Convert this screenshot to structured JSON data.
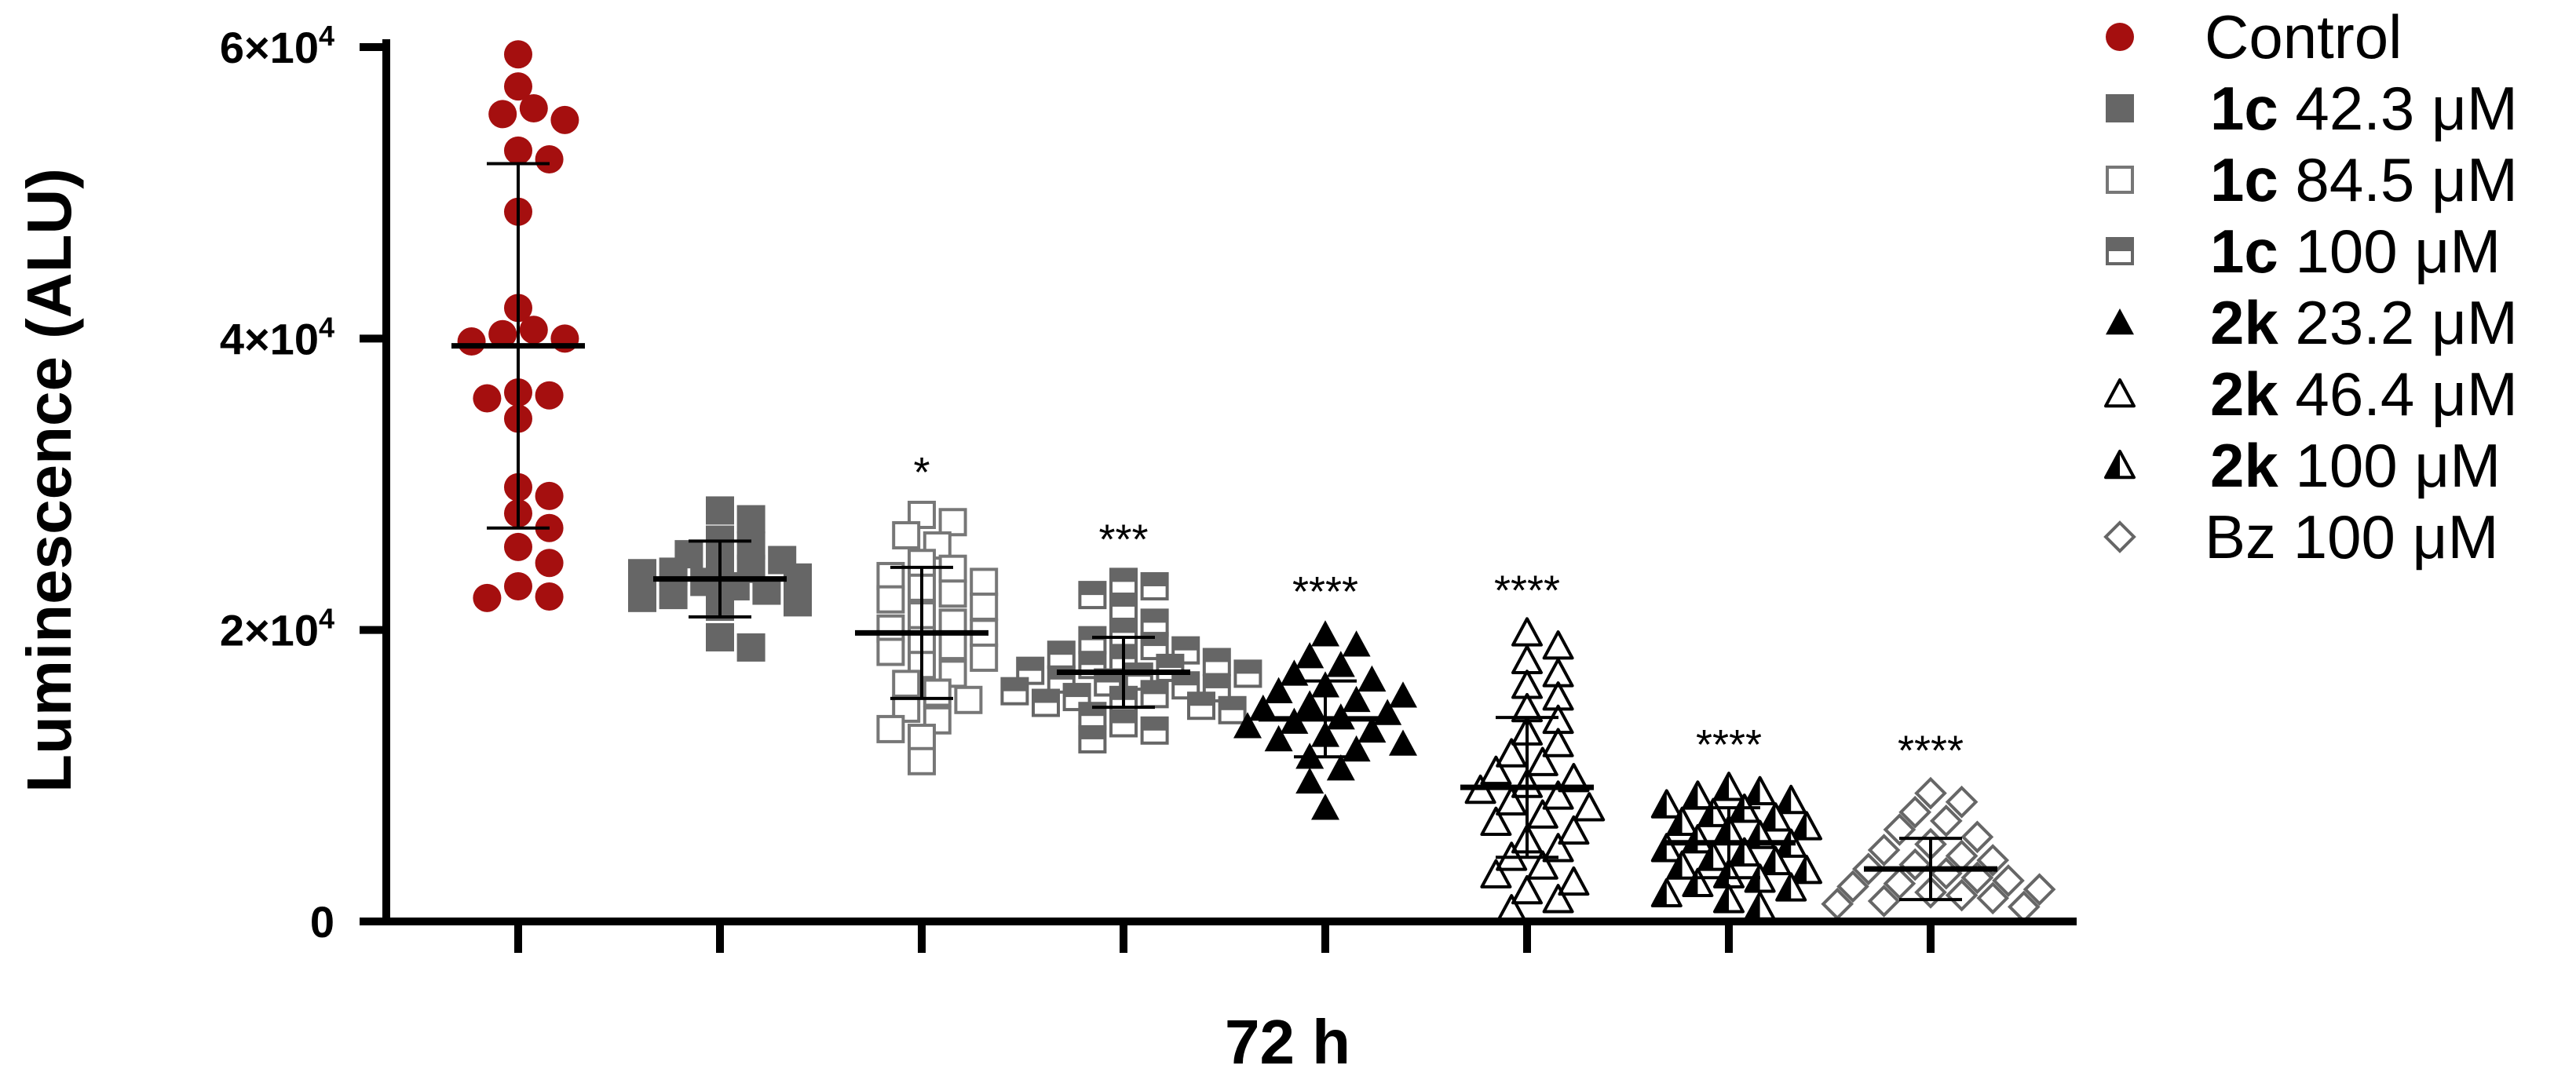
{
  "chart_data": {
    "type": "scatter",
    "title": "",
    "xlabel": "72 h",
    "ylabel": "Luminescence (ALU)",
    "ylim": [
      0,
      60000
    ],
    "yticks": [
      {
        "value": 0,
        "label": "0"
      },
      {
        "value": 20000,
        "base": "2×10",
        "exp": "4"
      },
      {
        "value": 40000,
        "base": "4×10",
        "exp": "4"
      },
      {
        "value": 60000,
        "base": "6×10",
        "exp": "4"
      }
    ],
    "legend_position": "right",
    "series": [
      {
        "bold": "",
        "rest": "Control",
        "marker": "circle",
        "color": "#a50f0f",
        "mean": 39500,
        "sd": 12500,
        "significance": "",
        "values": [
          59500,
          57300,
          55800,
          55400,
          55000,
          52900,
          52300,
          48700,
          42100,
          40600,
          40300,
          40000,
          39800,
          36300,
          36100,
          35900,
          34500,
          29800,
          29200,
          28000,
          27000,
          25700,
          24600,
          23000,
          22300,
          22200
        ]
      },
      {
        "bold": "1c",
        "rest": " 42.3 μM",
        "marker": "square",
        "color": "#666666",
        "mean": 23500,
        "sd": 2600,
        "significance": "",
        "values": [
          28200,
          27600,
          26200,
          25800,
          25200,
          24800,
          24500,
          24200,
          24000,
          23900,
          23600,
          23300,
          23000,
          22700,
          22400,
          22200,
          21900,
          21600,
          19500,
          18800
        ]
      },
      {
        "bold": "1c",
        "rest": " 84.5 μM",
        "marker": "square-open",
        "color": "#777777",
        "mean": 19800,
        "sd": 4500,
        "significance": "*",
        "values": [
          27900,
          27400,
          26500,
          25800,
          24600,
          24200,
          23700,
          23300,
          22900,
          22500,
          22100,
          21600,
          21000,
          20500,
          20100,
          19800,
          19300,
          18900,
          18500,
          18100,
          17600,
          17000,
          16300,
          15700,
          15200,
          14600,
          13800,
          13200,
          12600,
          11000
        ]
      },
      {
        "bold": "1c",
        "rest": " 100 μM",
        "marker": "square-half",
        "color": "#666666",
        "mean": 17100,
        "sd": 2400,
        "significance": "***",
        "values": [
          23300,
          23000,
          22400,
          21600,
          20500,
          19800,
          19300,
          18900,
          18600,
          18300,
          18000,
          17800,
          17600,
          17400,
          17200,
          17000,
          16800,
          16600,
          16400,
          16200,
          16000,
          15800,
          15600,
          15400,
          15200,
          15000,
          14800,
          14500,
          14100,
          13600,
          13100,
          12500
        ]
      },
      {
        "bold": "2k",
        "rest": " 23.2 μM",
        "marker": "triangle",
        "color": "#000000",
        "mean": 13900,
        "sd": 2600,
        "significance": "****",
        "values": [
          19700,
          19000,
          18200,
          17600,
          17000,
          16600,
          16200,
          15800,
          15500,
          15200,
          14900,
          14600,
          14300,
          14000,
          13700,
          13400,
          13100,
          12800,
          12500,
          12200,
          11800,
          11300,
          10500,
          9600,
          7800
        ]
      },
      {
        "bold": "2k",
        "rest": " 46.4 μM",
        "marker": "triangle-open",
        "color": "#000000",
        "mean": 9200,
        "sd": 4800,
        "significance": "****",
        "values": [
          19800,
          18900,
          17900,
          17000,
          16200,
          15400,
          14600,
          13800,
          13000,
          12200,
          11500,
          10900,
          10300,
          9800,
          9400,
          9000,
          8600,
          8200,
          7800,
          7300,
          6800,
          6200,
          5600,
          5000,
          4400,
          3800,
          3200,
          2700,
          2100,
          1500,
          800
        ]
      },
      {
        "bold": "2k",
        "rest": " 100  μM",
        "marker": "triangle-half",
        "color": "#000000",
        "mean": 5400,
        "sd": 2400,
        "significance": "****",
        "values": [
          9200,
          8900,
          8600,
          8300,
          8000,
          7700,
          7400,
          7100,
          6800,
          6500,
          6200,
          5900,
          5600,
          5300,
          5000,
          4700,
          4400,
          4100,
          3800,
          3500,
          3200,
          2900,
          2600,
          2300,
          1900,
          1500,
          1000
        ]
      },
      {
        "bold": "",
        "rest": "Bz 100 μM",
        "marker": "diamond-open",
        "color": "#666666",
        "mean": 3600,
        "sd": 2100,
        "significance": "****",
        "values": [
          8800,
          8200,
          7500,
          6900,
          6300,
          5800,
          5300,
          4900,
          4500,
          4200,
          3900,
          3600,
          3300,
          3000,
          2800,
          2600,
          2400,
          2200,
          2000,
          1800,
          1600,
          1400,
          1200,
          1000
        ]
      }
    ]
  }
}
